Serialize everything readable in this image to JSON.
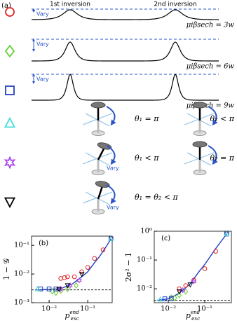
{
  "panel_a": {
    "label": "(a)",
    "header": [
      "1st inversion",
      "2nd inversion"
    ],
    "vary": "Vary",
    "pulse_rows": [
      {
        "label": "μiβsech = 3w"
      },
      {
        "label": "μiβsech = 6w"
      },
      {
        "label": "μiβsech = 9w"
      }
    ],
    "spin_rows": [
      {
        "left": "θ₁ = π",
        "right": "θ₂ < π"
      },
      {
        "left": "θ₁ < π",
        "right": "θ₂ = π"
      },
      {
        "left": "θ₁ = θ₂ < π"
      }
    ]
  },
  "panel_b": {
    "label": "(b)",
    "ylabel": "1 − 𝒢",
    "xlabel": {
      "base": "p",
      "sub": "exc",
      "sup": "end"
    },
    "log": true,
    "xlim": [
      0.0035,
      0.43
    ],
    "ylim": [
      0.001,
      0.21
    ],
    "xticks": [
      {
        "value": 0.01,
        "label": "10⁻²"
      },
      {
        "value": 0.1,
        "label": "10⁻¹"
      }
    ],
    "yticks": [
      {
        "value": 0.001,
        "label": "10⁻³"
      },
      {
        "value": 0.01,
        "label": "10⁻²"
      },
      {
        "value": 0.1,
        "label": "10⁻¹"
      }
    ],
    "dashed": 0.0028,
    "series": [
      {
        "color": "#1f3fbf",
        "marker": "line",
        "x": [
          0.005,
          0.01,
          0.02,
          0.04,
          0.07,
          0.1,
          0.15,
          0.2,
          0.3,
          0.4
        ],
        "y": [
          0.0028,
          0.0029,
          0.0031,
          0.0045,
          0.008,
          0.012,
          0.025,
          0.04,
          0.09,
          0.17
        ]
      },
      {
        "color": "#e02020",
        "marker": "circle",
        "x": [
          0.02,
          0.025,
          0.03,
          0.045,
          0.07,
          0.1,
          0.15,
          0.25,
          0.4
        ],
        "y": [
          0.007,
          0.0075,
          0.008,
          0.008,
          0.012,
          0.017,
          0.035,
          0.07,
          0.17
        ]
      },
      {
        "color": "#66cc33",
        "marker": "diamond",
        "x": [
          0.012,
          0.015,
          0.02,
          0.03,
          0.05
        ],
        "y": [
          0.0025,
          0.0022,
          0.0026,
          0.003,
          0.004
        ]
      },
      {
        "color": "#1f3fbf",
        "marker": "square",
        "x": [
          0.006,
          0.01,
          0.015,
          0.4
        ],
        "y": [
          0.003,
          0.003,
          0.003,
          0.17
        ]
      },
      {
        "color": "#44dddd",
        "marker": "triangle",
        "x": [
          0.005,
          0.4
        ],
        "y": [
          0.003,
          0.17
        ]
      },
      {
        "color": "#aa44ee",
        "marker": "star",
        "x": [
          0.02,
          0.035,
          0.06
        ],
        "y": [
          0.003,
          0.004,
          0.006
        ]
      },
      {
        "color": "#000000",
        "marker": "triangle-down",
        "x": [
          0.018,
          0.03,
          0.07
        ],
        "y": [
          0.003,
          0.004,
          0.01
        ]
      }
    ]
  },
  "panel_c": {
    "label": "(c)",
    "ylabel": "2σ² − 1",
    "xlabel": {
      "base": "p",
      "sub": "exc",
      "sup": "end"
    },
    "log": true,
    "xlim": [
      0.0041,
      0.54
    ],
    "ylim": [
      0.0033,
      1
    ],
    "xticks": [
      {
        "value": 0.01,
        "label": "10⁻²"
      },
      {
        "value": 0.1,
        "label": "10⁻¹"
      }
    ],
    "yticks": [
      {
        "value": 0.01,
        "label": "10⁻²"
      },
      {
        "value": 0.1,
        "label": "10⁻¹"
      },
      {
        "value": 1,
        "label": "10⁰"
      }
    ],
    "dashed": 0.004,
    "series": [
      {
        "color": "#1f3fbf",
        "marker": "line",
        "x": [
          0.005,
          0.01,
          0.02,
          0.04,
          0.07,
          0.1,
          0.2,
          0.4
        ],
        "y": [
          0.004,
          0.0045,
          0.007,
          0.015,
          0.04,
          0.07,
          0.25,
          0.8
        ]
      },
      {
        "color": "#e02020",
        "marker": "circle",
        "x": [
          0.02,
          0.03,
          0.05,
          0.1,
          0.2,
          0.4
        ],
        "y": [
          0.01,
          0.013,
          0.02,
          0.05,
          0.2,
          0.8
        ]
      },
      {
        "color": "#66cc33",
        "marker": "diamond",
        "x": [
          0.012,
          0.015,
          0.02,
          0.03
        ],
        "y": [
          0.005,
          0.0048,
          0.006,
          0.008
        ]
      },
      {
        "color": "#1f3fbf",
        "marker": "square",
        "x": [
          0.008,
          0.012,
          0.4
        ],
        "y": [
          0.0045,
          0.0046,
          0.8
        ]
      },
      {
        "color": "#44dddd",
        "marker": "triangle",
        "x": [
          0.006,
          0.4
        ],
        "y": [
          0.0043,
          0.8
        ]
      },
      {
        "color": "#aa44ee",
        "marker": "star",
        "x": [
          0.025,
          0.05
        ],
        "y": [
          0.009,
          0.018
        ]
      },
      {
        "color": "#000000",
        "marker": "triangle-down",
        "x": [
          0.02,
          0.04
        ],
        "y": [
          0.008,
          0.014
        ]
      }
    ]
  }
}
